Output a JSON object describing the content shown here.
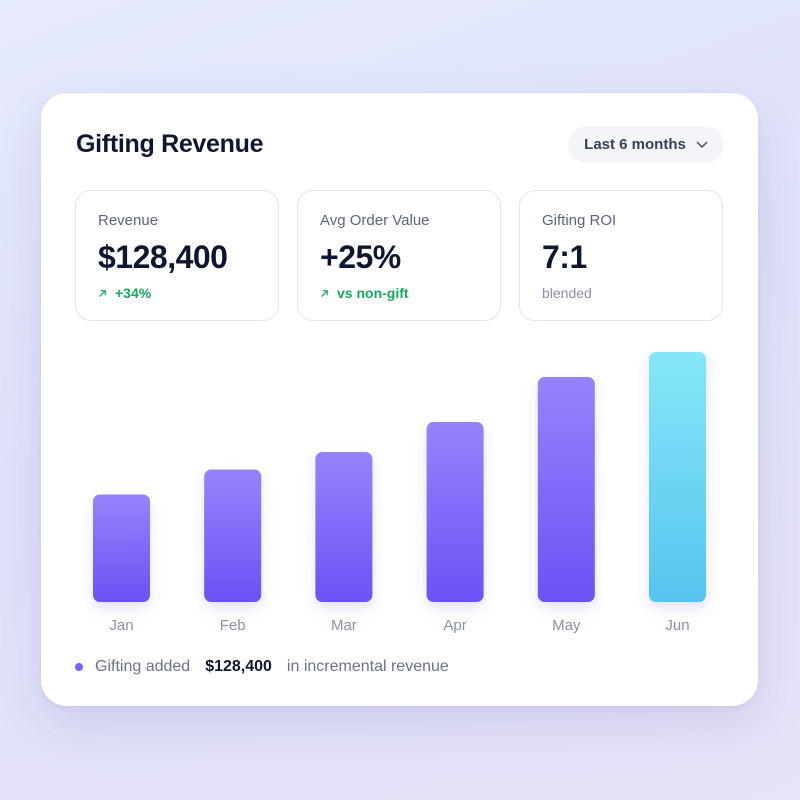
{
  "header": {
    "title": "Gifting Revenue",
    "range_label": "Last 6 months"
  },
  "stats": [
    {
      "label": "Revenue",
      "value": "$128,400",
      "sub": "+34%",
      "trend": "up"
    },
    {
      "label": "Avg Order Value",
      "value": "+25%",
      "sub": "vs non-gift",
      "trend": "up"
    },
    {
      "label": "Gifting ROI",
      "value": "7:1",
      "sub": "blended",
      "trend": "none"
    }
  ],
  "footer": {
    "prefix": "Gifting added",
    "amount": "$128,400",
    "suffix": "in incremental revenue"
  },
  "colors": {
    "bar_top": "#9683fb",
    "bar_bottom": "#6b52f5",
    "highlight_top": "#86e7f8",
    "highlight_bottom": "#56c4ef",
    "up": "#18a860"
  },
  "chart_data": {
    "type": "bar",
    "categories": [
      "Jan",
      "Feb",
      "Mar",
      "Apr",
      "May",
      "Jun"
    ],
    "values": [
      43,
      53,
      60,
      72,
      90,
      100
    ],
    "highlight_index": 5,
    "ylim": [
      0,
      100
    ],
    "grid": false
  }
}
